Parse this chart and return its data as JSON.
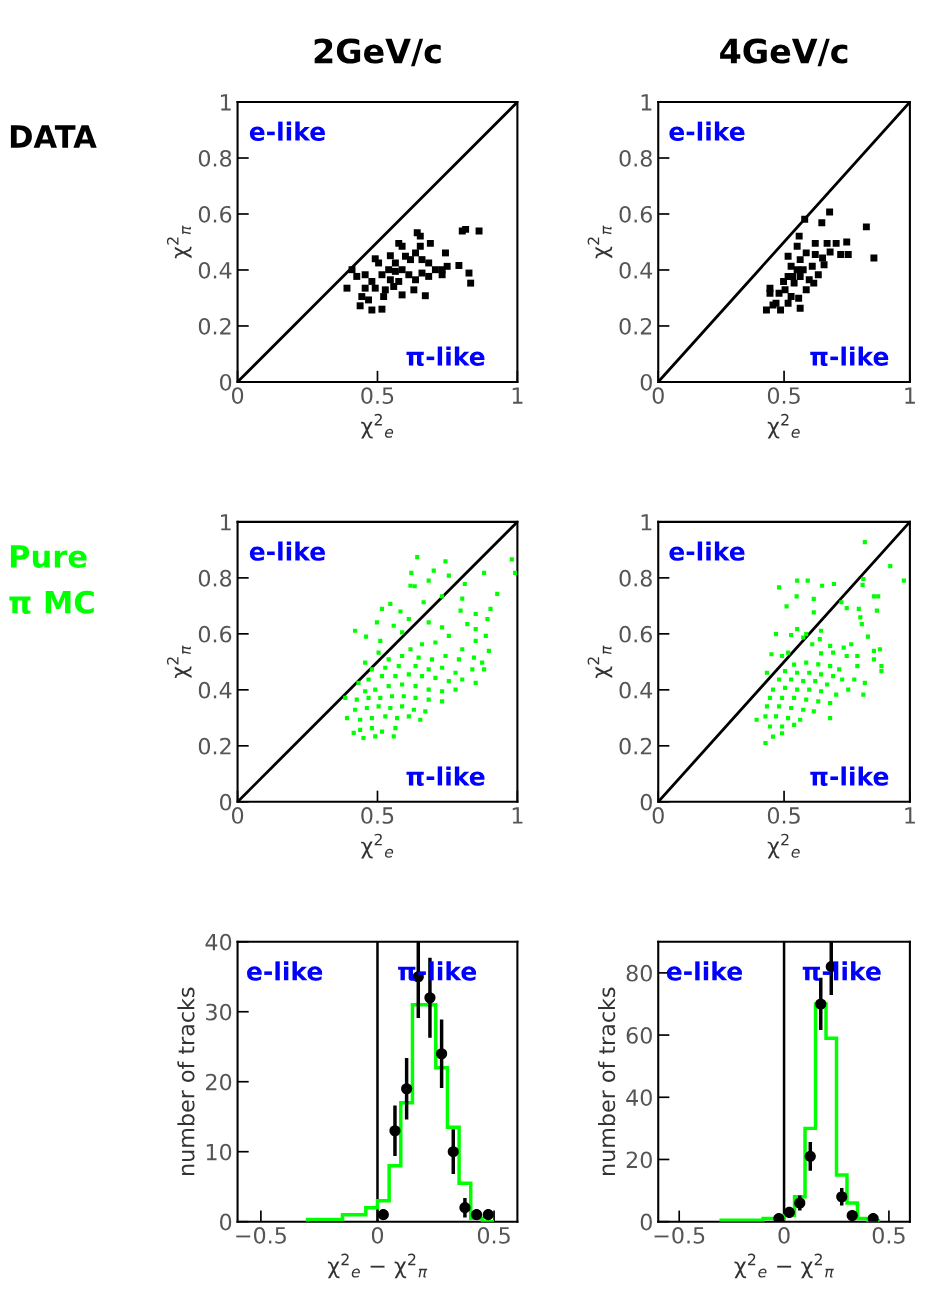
{
  "chart_data": [
    {
      "type": "scatter",
      "title": "2GeV/c",
      "xlabel": "χ$^{2}$$_{e}$",
      "ylabel": "χ$^{2}$$_{π}$",
      "xlim": [
        0,
        1
      ],
      "ylim": [
        0,
        1
      ],
      "xticks": [
        0,
        0.5,
        1
      ],
      "yticks": [
        0,
        0.2,
        0.4,
        0.6,
        0.8,
        1
      ],
      "annotations": [
        "e-like",
        "π-like",
        "DATA"
      ],
      "series": [
        {
          "type": "scatter",
          "color": "#000000",
          "marker": "square",
          "x": [
            0.863,
            0.803,
            0.815,
            0.642,
            0.653,
            0.743,
            0.689,
            0.576,
            0.588,
            0.653,
            0.546,
            0.492,
            0.504,
            0.618,
            0.683,
            0.749,
            0.791,
            0.827,
            0.833,
            0.731,
            0.707,
            0.409,
            0.426,
            0.391,
            0.456,
            0.48,
            0.516,
            0.54,
            0.564,
            0.588,
            0.612,
            0.636,
            0.659,
            0.683,
            0.63,
            0.671,
            0.588,
            0.558,
            0.528,
            0.492,
            0.456,
            0.444,
            0.468,
            0.438,
            0.48,
            0.516,
            0.522,
            0.546,
            0.576,
            0.564,
            0.6,
            0.636,
            0.731,
            0.659
          ],
          "values": [
            0.539,
            0.539,
            0.545,
            0.533,
            0.521,
            0.461,
            0.495,
            0.495,
            0.485,
            0.485,
            0.451,
            0.44,
            0.425,
            0.437,
            0.425,
            0.413,
            0.416,
            0.389,
            0.353,
            0.383,
            0.401,
            0.401,
            0.377,
            0.335,
            0.383,
            0.359,
            0.383,
            0.401,
            0.395,
            0.401,
            0.383,
            0.365,
            0.389,
            0.377,
            0.329,
            0.308,
            0.311,
            0.341,
            0.329,
            0.335,
            0.335,
            0.305,
            0.293,
            0.272,
            0.257,
            0.26,
            0.305,
            0.365,
            0.359,
            0.425,
            0.449,
            0.461,
            0.401,
            0.437
          ]
        },
        {
          "type": "line",
          "color": "#000000",
          "x": [
            0,
            1
          ],
          "values": [
            0,
            1
          ]
        }
      ]
    },
    {
      "type": "scatter",
      "title": "4GeV/c",
      "xlabel": "χ$^{2}$$_{e}$",
      "ylabel": "χ$^{2}$$_{π}$",
      "xlim": [
        0,
        1
      ],
      "ylim": [
        0,
        1
      ],
      "xticks": [
        0,
        0.5,
        1
      ],
      "yticks": [
        0,
        0.2,
        0.4,
        0.6,
        0.8,
        1
      ],
      "annotations": [
        "e-like",
        "π-like"
      ],
      "series": [
        {
          "type": "scatter",
          "color": "#000000",
          "marker": "square",
          "x": [
            0.827,
            0.681,
            0.65,
            0.582,
            0.56,
            0.552,
            0.624,
            0.671,
            0.707,
            0.749,
            0.755,
            0.725,
            0.683,
            0.857,
            0.624,
            0.653,
            0.516,
            0.564,
            0.528,
            0.576,
            0.612,
            0.659,
            0.636,
            0.6,
            0.564,
            0.54,
            0.516,
            0.504,
            0.48,
            0.444,
            0.444,
            0.468,
            0.43,
            0.456,
            0.486,
            0.516,
            0.564,
            0.558,
            0.588,
            0.528,
            0.552,
            0.588,
            0.534,
            0.498,
            0.618
          ],
          "values": [
            0.554,
            0.607,
            0.569,
            0.581,
            0.521,
            0.485,
            0.495,
            0.495,
            0.495,
            0.5,
            0.455,
            0.455,
            0.464,
            0.443,
            0.455,
            0.443,
            0.449,
            0.437,
            0.413,
            0.401,
            0.413,
            0.419,
            0.383,
            0.365,
            0.377,
            0.353,
            0.377,
            0.329,
            0.317,
            0.335,
            0.317,
            0.281,
            0.257,
            0.275,
            0.257,
            0.281,
            0.263,
            0.299,
            0.329,
            0.305,
            0.401,
            0.461,
            0.377,
            0.359,
            0.353
          ]
        },
        {
          "type": "line",
          "color": "#000000",
          "x": [
            0,
            1
          ],
          "values": [
            0,
            1
          ]
        }
      ]
    },
    {
      "type": "scatter",
      "xlabel": "χ$^{2}$$_{e}$",
      "ylabel": "χ$^{2}$$_{π}$",
      "xlim": [
        0,
        1
      ],
      "ylim": [
        0,
        1
      ],
      "xticks": [
        0,
        0.5,
        1
      ],
      "yticks": [
        0,
        0.2,
        0.4,
        0.6,
        0.8,
        1
      ],
      "annotations": [
        "e-like",
        "π-like",
        "Pure\nπ MC"
      ],
      "series": [
        {
          "type": "scatter",
          "color": "#00ff00",
          "marker": "square",
          "x": [
            0.642,
            0.743,
            0.98,
            0.992,
            0.621,
            0.701,
            0.755,
            0.683,
            0.881,
            0.618,
            0.633,
            0.812,
            0.731,
            0.665,
            0.546,
            0.516,
            0.582,
            0.803,
            0.928,
            0.797,
            0.851,
            0.904,
            0.893,
            0.612,
            0.498,
            0.558,
            0.683,
            0.731,
            0.821,
            0.42,
            0.588,
            0.459,
            0.51,
            0.851,
            0.887,
            0.851,
            0.755,
            0.707,
            0.659,
            0.618,
            0.803,
            0.898,
            0.874,
            0.845,
            0.791,
            0.743,
            0.695,
            0.647,
            0.588,
            0.54,
            0.504,
            0.456,
            0.48,
            0.528,
            0.576,
            0.636,
            0.683,
            0.731,
            0.779,
            0.839,
            0.881,
            0.851,
            0.803,
            0.755,
            0.707,
            0.659,
            0.612,
            0.564,
            0.516,
            0.468,
            0.432,
            0.456,
            0.492,
            0.54,
            0.588,
            0.636,
            0.683,
            0.731,
            0.779,
            0.385,
            0.426,
            0.468,
            0.51,
            0.552,
            0.594,
            0.636,
            0.683,
            0.731,
            0.42,
            0.462,
            0.504,
            0.546,
            0.588,
            0.63,
            0.671,
            0.391,
            0.438,
            0.48,
            0.528,
            0.57,
            0.612,
            0.653,
            0.438,
            0.48,
            0.516,
            0.564,
            0.415,
            0.45,
            0.558,
            0.492
          ],
          "values": [
            0.874,
            0.859,
            0.866,
            0.818,
            0.818,
            0.826,
            0.808,
            0.79,
            0.818,
            0.772,
            0.77,
            0.778,
            0.734,
            0.713,
            0.707,
            0.689,
            0.68,
            0.726,
            0.743,
            0.683,
            0.671,
            0.689,
            0.653,
            0.653,
            0.641,
            0.629,
            0.641,
            0.623,
            0.635,
            0.611,
            0.605,
            0.59,
            0.575,
            0.617,
            0.593,
            0.575,
            0.593,
            0.569,
            0.563,
            0.545,
            0.545,
            0.539,
            0.497,
            0.515,
            0.509,
            0.521,
            0.509,
            0.515,
            0.521,
            0.509,
            0.533,
            0.497,
            0.473,
            0.479,
            0.485,
            0.485,
            0.473,
            0.479,
            0.461,
            0.473,
            0.473,
            0.425,
            0.437,
            0.431,
            0.443,
            0.449,
            0.455,
            0.449,
            0.449,
            0.437,
            0.425,
            0.395,
            0.401,
            0.413,
            0.419,
            0.413,
            0.401,
            0.395,
            0.401,
            0.371,
            0.365,
            0.371,
            0.371,
            0.377,
            0.377,
            0.371,
            0.365,
            0.359,
            0.329,
            0.335,
            0.341,
            0.335,
            0.341,
            0.329,
            0.323,
            0.299,
            0.293,
            0.299,
            0.305,
            0.299,
            0.305,
            0.293,
            0.257,
            0.263,
            0.251,
            0.263,
            0.246,
            0.228,
            0.234,
            0.234
          ]
        },
        {
          "type": "line",
          "color": "#000000",
          "x": [
            0,
            1
          ],
          "values": [
            0,
            1
          ]
        }
      ]
    },
    {
      "type": "scatter",
      "xlabel": "χ$^{2}$$_{e}$",
      "ylabel": "χ$^{2}$$_{π}$",
      "xlim": [
        0,
        1
      ],
      "ylim": [
        0,
        1
      ],
      "xticks": [
        0,
        0.5,
        1
      ],
      "yticks": [
        0,
        0.2,
        0.4,
        0.6,
        0.8,
        1
      ],
      "annotations": [
        "e-like",
        "π-like"
      ],
      "series": [
        {
          "type": "scatter",
          "color": "#00ff00",
          "marker": "square",
          "x": [
            0.821,
            0.922,
            0.976,
            0.552,
            0.594,
            0.815,
            0.48,
            0.651,
            0.698,
            0.812,
            0.55,
            0.618,
            0.857,
            0.874,
            0.728,
            0.51,
            0.749,
            0.797,
            0.869,
            0.618,
            0.803,
            0.809,
            0.552,
            0.468,
            0.528,
            0.588,
            0.647,
            0.833,
            0.576,
            0.642,
            0.612,
            0.683,
            0.737,
            0.767,
            0.857,
            0.881,
            0.45,
            0.492,
            0.516,
            0.647,
            0.695,
            0.749,
            0.791,
            0.857,
            0.887,
            0.887,
            0.791,
            0.821,
            0.815,
            0.779,
            0.755,
            0.432,
            0.683,
            0.391,
            0.54,
            0.588,
            0.636,
            0.683,
            0.719,
            0.504,
            0.552,
            0.6,
            0.647,
            0.695,
            0.731,
            0.48,
            0.528,
            0.576,
            0.624,
            0.671,
            0.456,
            0.504,
            0.552,
            0.6,
            0.647,
            0.707,
            0.444,
            0.492,
            0.54,
            0.588,
            0.636,
            0.683,
            0.432,
            0.48,
            0.528,
            0.576,
            0.618,
            0.426,
            0.468,
            0.516,
            0.564,
            0.444,
            0.492,
            0.54,
            0.456,
            0.426,
            0.492
          ],
          "values": [
            0.928,
            0.842,
            0.79,
            0.79,
            0.79,
            0.796,
            0.766,
            0.772,
            0.778,
            0.775,
            0.734,
            0.725,
            0.734,
            0.734,
            0.713,
            0.698,
            0.692,
            0.689,
            0.683,
            0.677,
            0.659,
            0.635,
            0.617,
            0.599,
            0.596,
            0.599,
            0.611,
            0.59,
            0.587,
            0.581,
            0.563,
            0.557,
            0.551,
            0.563,
            0.539,
            0.545,
            0.527,
            0.521,
            0.533,
            0.53,
            0.533,
            0.521,
            0.521,
            0.509,
            0.485,
            0.467,
            0.485,
            0.425,
            0.383,
            0.437,
            0.401,
            0.461,
            0.299,
            0.293,
            0.49,
            0.497,
            0.491,
            0.485,
            0.473,
            0.467,
            0.461,
            0.461,
            0.455,
            0.449,
            0.437,
            0.437,
            0.437,
            0.431,
            0.431,
            0.419,
            0.401,
            0.407,
            0.401,
            0.401,
            0.395,
            0.383,
            0.371,
            0.371,
            0.371,
            0.365,
            0.359,
            0.353,
            0.341,
            0.341,
            0.335,
            0.329,
            0.323,
            0.305,
            0.305,
            0.299,
            0.293,
            0.269,
            0.269,
            0.275,
            0.233,
            0.21,
            0.245
          ]
        },
        {
          "type": "line",
          "color": "#000000",
          "x": [
            0,
            1
          ],
          "values": [
            0,
            1
          ]
        }
      ]
    },
    {
      "type": "histogram",
      "xlabel": "χ$^{2}$$_{e}$ − χ$^{2}$$_{π}$",
      "ylabel": "number of tracks",
      "xlim": [
        -0.6,
        0.6
      ],
      "ylim": [
        0,
        40
      ],
      "xticks": [
        {
          "value": -0.5,
          "label": "−0.5"
        },
        0,
        0.5
      ],
      "yticks": [
        0,
        10,
        20,
        30,
        40
      ],
      "annotations": [
        "e-like",
        "π-like"
      ],
      "ref_lines": [
        {
          "axis": "x",
          "value": 0,
          "color": "#000000"
        }
      ],
      "series": [
        {
          "type": "histogram",
          "color": "#00ff00",
          "bins": [
            -0.3,
            -0.25,
            -0.2,
            -0.15,
            -0.1,
            -0.05,
            0,
            0.05,
            0.1,
            0.15,
            0.2,
            0.25,
            0.3,
            0.35,
            0.4,
            0.45,
            0.5
          ],
          "values": [
            0.3,
            0.3,
            0.3,
            1,
            1,
            2,
            3,
            8,
            17,
            31,
            31,
            22,
            13.5,
            5.5,
            0.5,
            0
          ]
        },
        {
          "type": "scatter",
          "color": "#000000",
          "marker": "circle",
          "x": [
            0.025,
            0.075,
            0.125,
            0.175,
            0.225,
            0.275,
            0.325,
            0.375,
            0.425,
            0.475
          ],
          "values": [
            1,
            13,
            19,
            35,
            32,
            24,
            10,
            2,
            1,
            1
          ],
          "errors": [
            null,
            3.6,
            4.4,
            5.9,
            5.7,
            4.9,
            3.2,
            1.4,
            null,
            null
          ]
        }
      ]
    },
    {
      "type": "histogram",
      "xlabel": "χ$^{2}$$_{e}$ − χ$^{2}$$_{π}$",
      "ylabel": "number of tracks",
      "xlim": [
        -0.6,
        0.6
      ],
      "ylim": [
        0,
        90
      ],
      "xticks": [
        {
          "value": -0.5,
          "label": "−0.5"
        },
        0,
        0.5
      ],
      "yticks": [
        0,
        20,
        40,
        60,
        80
      ],
      "annotations": [
        "e-like",
        "π-like"
      ],
      "ref_lines": [
        {
          "axis": "x",
          "value": 0,
          "color": "#000000"
        }
      ],
      "series": [
        {
          "type": "histogram",
          "color": "#00ff00",
          "bins": [
            -0.3,
            -0.25,
            -0.2,
            -0.15,
            -0.1,
            -0.05,
            0,
            0.05,
            0.1,
            0.15,
            0.2,
            0.25,
            0.3,
            0.35,
            0.4,
            0.45
          ],
          "values": [
            0.5,
            0.5,
            0.5,
            0.5,
            1,
            1,
            2,
            8,
            30,
            70,
            59,
            15,
            6,
            1,
            0.3
          ]
        },
        {
          "type": "scatter",
          "color": "#000000",
          "marker": "circle",
          "x": [
            -0.025,
            0.025,
            0.075,
            0.125,
            0.175,
            0.225,
            0.275,
            0.325,
            0.425
          ],
          "values": [
            1,
            3,
            6,
            21,
            70,
            82,
            8,
            2,
            1
          ],
          "errors": [
            1,
            1.7,
            2.4,
            4.6,
            8.4,
            9.1,
            2.8,
            1.4,
            null
          ]
        }
      ]
    }
  ]
}
